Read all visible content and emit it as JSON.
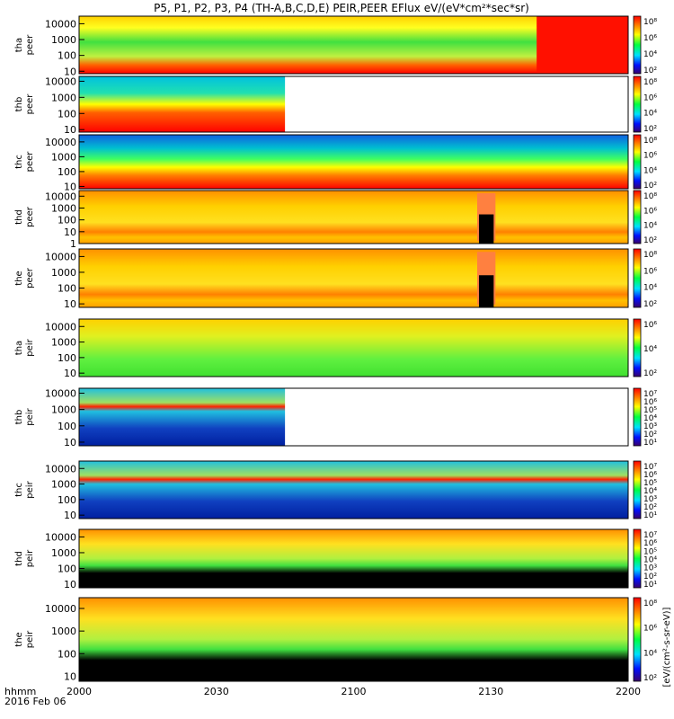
{
  "chart_data": {
    "type": "heatmap",
    "title": "P5, P1, P2, P3, P4 (TH-A,B,C,D,E) PEIR,PEER EFlux eV/(eV*cm²*sec*sr)",
    "time_axis": {
      "ticks": [
        "2000",
        "2030",
        "2100",
        "2130",
        "2200"
      ],
      "row_labels": [
        "hhmm",
        "2016 Feb 06"
      ],
      "range": [
        "2016-02-06 20:00",
        "2016-02-06 22:00"
      ]
    },
    "colorbar_units": "[eV/(cm²-s-sr-eV)]",
    "panels": [
      {
        "probe": "tha",
        "species": "peer",
        "yticks": [
          "10000",
          "1000",
          "100",
          "10"
        ],
        "ylim": [
          7,
          30000
        ],
        "scale": "log",
        "colorbar_ticks": [
          "10⁸",
          "10⁶",
          "10⁴",
          "10²"
        ],
        "data_end": "2200",
        "style": "green band with red low-energy layer; red region from about 2140"
      },
      {
        "probe": "thb",
        "species": "peer",
        "yticks": [
          "10000",
          "1000",
          "100",
          "10"
        ],
        "ylim": [
          7,
          20000
        ],
        "scale": "log",
        "colorbar_ticks": [
          "10⁸",
          "10⁶",
          "10⁴",
          "10²"
        ],
        "data_end": "2045",
        "style": "cyan noise at high energy, red below 100 eV"
      },
      {
        "probe": "thc",
        "species": "peer",
        "yticks": [
          "10000",
          "1000",
          "100",
          "10"
        ],
        "ylim": [
          7,
          30000
        ],
        "scale": "log",
        "colorbar_ticks": [
          "10⁸",
          "10⁶",
          "10⁴",
          "10²"
        ],
        "data_end": "2200",
        "style": "blue noise at top, green-yellow-red gradient to low energy"
      },
      {
        "probe": "thd",
        "species": "peer",
        "yticks": [
          "10000",
          "1000",
          "100",
          "10",
          "1"
        ],
        "ylim": [
          1,
          30000
        ],
        "scale": "log",
        "colorbar_ticks": [
          "10⁸",
          "10⁶",
          "10⁴",
          "10²"
        ],
        "data_end": "2200",
        "gap": [
          "2127",
          "2131"
        ],
        "style": "yellow-orange spectrum"
      },
      {
        "probe": "the",
        "species": "peer",
        "yticks": [
          "10000",
          "1000",
          "100",
          "10"
        ],
        "ylim": [
          6,
          30000
        ],
        "scale": "log",
        "colorbar_ticks": [
          "10⁸",
          "10⁶",
          "10⁴",
          "10²"
        ],
        "data_end": "2200",
        "gap": [
          "2127",
          "2131"
        ],
        "style": "yellow-orange spectrum"
      },
      {
        "probe": "tha",
        "species": "peir",
        "yticks": [
          "10000",
          "1000",
          "100",
          "10"
        ],
        "ylim": [
          6,
          30000
        ],
        "scale": "log",
        "colorbar_ticks": [
          "10⁶",
          "10⁴",
          "10²"
        ],
        "data_end": "2200",
        "style": "green-yellow spectrum"
      },
      {
        "probe": "thb",
        "species": "peir",
        "yticks": [
          "10000",
          "1000",
          "100",
          "10"
        ],
        "ylim": [
          6,
          20000
        ],
        "scale": "log",
        "colorbar_ticks": [
          "10⁷",
          "10⁶",
          "10⁵",
          "10⁴",
          "10³",
          "10²",
          "10¹"
        ],
        "data_end": "2045",
        "style": "cyan-blue noise with red band near 1000 eV"
      },
      {
        "probe": "thc",
        "species": "peir",
        "yticks": [
          "10000",
          "1000",
          "100",
          "10"
        ],
        "ylim": [
          6,
          30000
        ],
        "scale": "log",
        "colorbar_ticks": [
          "10⁷",
          "10⁶",
          "10⁵",
          "10⁴",
          "10³",
          "10²",
          "10¹"
        ],
        "data_end": "2200",
        "style": "cyan-blue noise with red band near 1000 eV"
      },
      {
        "probe": "thd",
        "species": "peir",
        "yticks": [
          "10000",
          "1000",
          "100",
          "10"
        ],
        "ylim": [
          6,
          30000
        ],
        "scale": "log",
        "colorbar_ticks": [
          "10⁷",
          "10⁶",
          "10⁵",
          "10⁴",
          "10³",
          "10²",
          "10¹"
        ],
        "data_end": "2200",
        "style": "yellow-green spectrum over black low-energy region"
      },
      {
        "probe": "the",
        "species": "peir",
        "yticks": [
          "10000",
          "1000",
          "100",
          "10"
        ],
        "ylim": [
          6,
          30000
        ],
        "scale": "log",
        "colorbar_ticks": [
          "10⁸",
          "10⁶",
          "10⁴",
          "10²"
        ],
        "data_end": "2200",
        "style": "yellow-green spectrum over black low-energy region"
      }
    ]
  }
}
